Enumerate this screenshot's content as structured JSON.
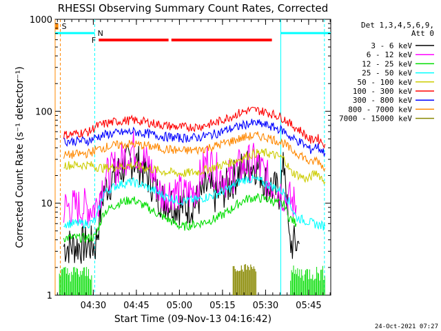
{
  "chart_data": {
    "type": "line",
    "title": "RHESSI Observing Summary Count Rates, Corrected",
    "xlabel": "Start Time (09-Nov-13 04:16:42)",
    "ylabel": "Corrected Count Rate (s⁻¹ detector⁻¹)",
    "yscale": "log",
    "ylim": [
      1,
      1000
    ],
    "xlim_minutes": [
      0,
      96
    ],
    "x_ticks": [
      {
        "label": "04:30",
        "t": 13.3
      },
      {
        "label": "04:45",
        "t": 28.3
      },
      {
        "label": "05:00",
        "t": 43.3
      },
      {
        "label": "05:15",
        "t": 58.3
      },
      {
        "label": "05:30",
        "t": 73.3
      },
      {
        "label": "05:45",
        "t": 88.3
      }
    ],
    "y_ticks": [
      {
        "label": "1",
        "v": 1
      },
      {
        "label": "10",
        "v": 10
      },
      {
        "label": "100",
        "v": 100
      },
      {
        "label": "1000",
        "v": 1000
      }
    ],
    "legend": {
      "header": [
        "Det 1,3,4,5,6,9,",
        "Att 0"
      ],
      "position": "right"
    },
    "series": [
      {
        "name": "3 - 6 keV",
        "color": "#000000",
        "points": [
          [
            3,
            3.4
          ],
          [
            12,
            3.5
          ],
          [
            14,
            3.5
          ],
          [
            17,
            14
          ],
          [
            22,
            22
          ],
          [
            27,
            30
          ],
          [
            30,
            25
          ],
          [
            33,
            18
          ],
          [
            37,
            11
          ],
          [
            41,
            10
          ],
          [
            45,
            9
          ],
          [
            49,
            10
          ],
          [
            53,
            15
          ],
          [
            56,
            12
          ],
          [
            60,
            15
          ],
          [
            64,
            22
          ],
          [
            67,
            25
          ],
          [
            70,
            26
          ],
          [
            74,
            16
          ],
          [
            78,
            13
          ],
          [
            80,
            28
          ],
          [
            81.5,
            3.6
          ],
          [
            85,
            3.6
          ]
        ]
      },
      {
        "name": "6 - 12 keV",
        "color": "#ff00ff",
        "points": [
          [
            3,
            9
          ],
          [
            12,
            9
          ],
          [
            14,
            9
          ],
          [
            17,
            18
          ],
          [
            22,
            26
          ],
          [
            27,
            40
          ],
          [
            30,
            32
          ],
          [
            33,
            25
          ],
          [
            37,
            12
          ],
          [
            41,
            14
          ],
          [
            45,
            12
          ],
          [
            49,
            14
          ],
          [
            53,
            30
          ],
          [
            56,
            22
          ],
          [
            60,
            18
          ],
          [
            64,
            24
          ],
          [
            67,
            27
          ],
          [
            70,
            28
          ],
          [
            74,
            18
          ],
          [
            78,
            14
          ],
          [
            80,
            12
          ],
          [
            81.5,
            11
          ],
          [
            84,
            9.5
          ]
        ]
      },
      {
        "name": "12 - 25 keV",
        "color": "#00dd00",
        "points": [
          [
            3,
            4.2
          ],
          [
            12,
            4.2
          ],
          [
            14,
            4.3
          ],
          [
            17,
            8
          ],
          [
            22,
            10
          ],
          [
            27,
            11
          ],
          [
            32,
            9
          ],
          [
            38,
            7
          ],
          [
            44,
            5.5
          ],
          [
            50,
            6
          ],
          [
            56,
            6.8
          ],
          [
            60,
            8
          ],
          [
            64,
            10
          ],
          [
            67,
            11.2
          ],
          [
            70,
            11.5
          ],
          [
            74,
            11
          ],
          [
            78,
            10
          ],
          [
            80,
            9.5
          ],
          [
            81.5,
            7
          ],
          [
            84,
            6
          ]
        ]
      },
      {
        "name": "25 - 50 keV",
        "color": "#00ffff",
        "points": [
          [
            3,
            6
          ],
          [
            12,
            6
          ],
          [
            14,
            6.5
          ],
          [
            17,
            13
          ],
          [
            22,
            16
          ],
          [
            27,
            17
          ],
          [
            32,
            15
          ],
          [
            38,
            12
          ],
          [
            44,
            10.5
          ],
          [
            50,
            11
          ],
          [
            56,
            12.5
          ],
          [
            60,
            14
          ],
          [
            64,
            17
          ],
          [
            67,
            18.5
          ],
          [
            70,
            18
          ],
          [
            74,
            16
          ],
          [
            78,
            14
          ],
          [
            80,
            13
          ],
          [
            84,
            7
          ],
          [
            90,
            6
          ],
          [
            94,
            5.6
          ]
        ]
      },
      {
        "name": "50 - 100 keV",
        "color": "#cccc00",
        "points": [
          [
            3,
            26
          ],
          [
            12,
            26
          ],
          [
            14,
            25
          ],
          [
            17,
            24
          ],
          [
            22,
            25
          ],
          [
            27,
            26
          ],
          [
            32,
            24
          ],
          [
            38,
            22
          ],
          [
            44,
            21
          ],
          [
            50,
            22
          ],
          [
            56,
            25
          ],
          [
            60,
            27
          ],
          [
            64,
            30
          ],
          [
            67,
            33
          ],
          [
            70,
            35
          ],
          [
            74,
            35
          ],
          [
            78,
            32
          ],
          [
            80,
            30
          ],
          [
            82,
            22
          ],
          [
            85,
            20
          ],
          [
            88,
            18
          ],
          [
            91,
            22
          ],
          [
            94,
            17
          ]
        ]
      },
      {
        "name": "100 - 300 keV",
        "color": "#ff0000",
        "points": [
          [
            3,
            55
          ],
          [
            12,
            60
          ],
          [
            14,
            68
          ],
          [
            18,
            74
          ],
          [
            22,
            78
          ],
          [
            27,
            80
          ],
          [
            32,
            76
          ],
          [
            38,
            70
          ],
          [
            44,
            67
          ],
          [
            50,
            68
          ],
          [
            56,
            75
          ],
          [
            60,
            85
          ],
          [
            64,
            95
          ],
          [
            67,
            102
          ],
          [
            70,
            103
          ],
          [
            74,
            97
          ],
          [
            78,
            88
          ],
          [
            80,
            82
          ],
          [
            82,
            72
          ],
          [
            86,
            60
          ],
          [
            89,
            48
          ],
          [
            91,
            52
          ],
          [
            94,
            44
          ]
        ]
      },
      {
        "name": "300 - 800 keV",
        "color": "#0000ff",
        "points": [
          [
            3,
            47
          ],
          [
            12,
            48
          ],
          [
            14,
            52
          ],
          [
            18,
            56
          ],
          [
            22,
            58
          ],
          [
            27,
            60
          ],
          [
            32,
            57
          ],
          [
            38,
            53
          ],
          [
            44,
            51
          ],
          [
            50,
            52
          ],
          [
            56,
            57
          ],
          [
            60,
            63
          ],
          [
            64,
            68
          ],
          [
            67,
            73
          ],
          [
            70,
            74
          ],
          [
            74,
            70
          ],
          [
            78,
            64
          ],
          [
            80,
            60
          ],
          [
            82,
            52
          ],
          [
            86,
            45
          ],
          [
            89,
            38
          ],
          [
            91,
            42
          ],
          [
            94,
            35
          ]
        ]
      },
      {
        "name": "800 - 7000 keV",
        "color": "#ff8800",
        "points": [
          [
            3,
            33
          ],
          [
            12,
            35
          ],
          [
            14,
            38
          ],
          [
            18,
            41
          ],
          [
            22,
            43
          ],
          [
            27,
            44
          ],
          [
            32,
            42
          ],
          [
            38,
            39
          ],
          [
            44,
            37
          ],
          [
            50,
            38
          ],
          [
            56,
            42
          ],
          [
            60,
            46
          ],
          [
            64,
            50
          ],
          [
            67,
            53
          ],
          [
            70,
            54
          ],
          [
            74,
            52
          ],
          [
            78,
            47
          ],
          [
            80,
            44
          ],
          [
            82,
            38
          ],
          [
            86,
            33
          ],
          [
            89,
            27
          ],
          [
            91,
            30
          ],
          [
            94,
            24
          ]
        ]
      },
      {
        "name": "7000 - 15000 keV",
        "color": "#888800",
        "points": [
          [
            62,
            1.8
          ],
          [
            70,
            1.8
          ]
        ]
      }
    ],
    "flags": [
      {
        "label": "S",
        "color": "#ff8800"
      },
      {
        "label": "N",
        "color": "#00ffff"
      },
      {
        "label": "F",
        "color": "#ff0000"
      }
    ]
  },
  "footer_timestamp": "24-Oct-2021 07:27"
}
